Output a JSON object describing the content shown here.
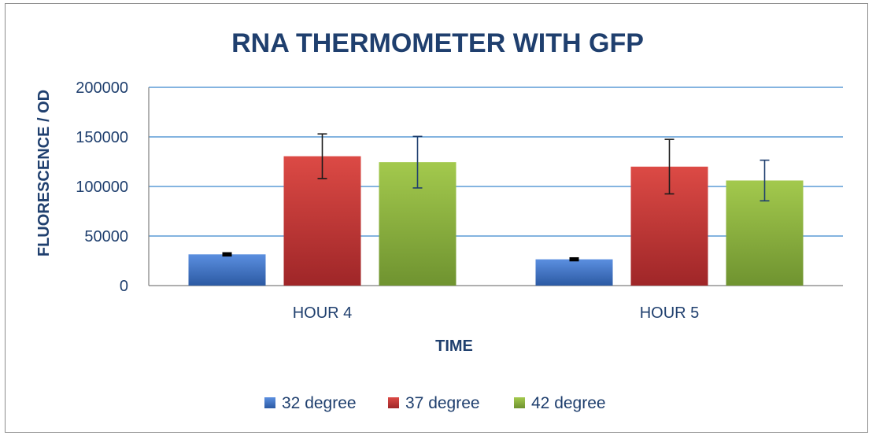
{
  "chart_data": {
    "type": "bar",
    "title": "RNA THERMOMETER WITH GFP",
    "xlabel": "TIME",
    "ylabel": "FLUORESCENCE / OD",
    "categories": [
      "HOUR 4",
      "HOUR 5"
    ],
    "ylim": [
      0,
      200000
    ],
    "yticks": [
      0,
      50000,
      100000,
      150000,
      200000
    ],
    "yticklabels": [
      "0",
      "50000",
      "100000",
      "150000",
      "200000"
    ],
    "grid": true,
    "legend_position": "bottom",
    "series": [
      {
        "name": "32 degree",
        "values": [
          31500,
          26500
        ],
        "errors": [
          1000,
          900
        ],
        "color": "#3f74c8",
        "color_light": "#5b8fe0",
        "color_dark": "#2c5aa3"
      },
      {
        "name": "37 degree",
        "values": [
          130500,
          120000
        ],
        "errors": [
          22500,
          27500
        ],
        "color": "#c8393a",
        "color_light": "#dc4a45",
        "color_dark": "#9f2628"
      },
      {
        "name": "42 degree",
        "values": [
          124500,
          106000
        ],
        "errors": [
          26000,
          20500
        ],
        "color": "#8cb23e",
        "color_light": "#a3c94d",
        "color_dark": "#6f9330"
      }
    ],
    "errorbar_colors": [
      "#000000",
      "#1a1a1a",
      "#1f3f6e"
    ]
  },
  "colors": {
    "title": "#1f3f6e",
    "axis_label": "#1f3f6e",
    "tick_label": "#1f3f6e",
    "grid": "#5b9bd5",
    "axis_line": "#7f7f7f"
  }
}
